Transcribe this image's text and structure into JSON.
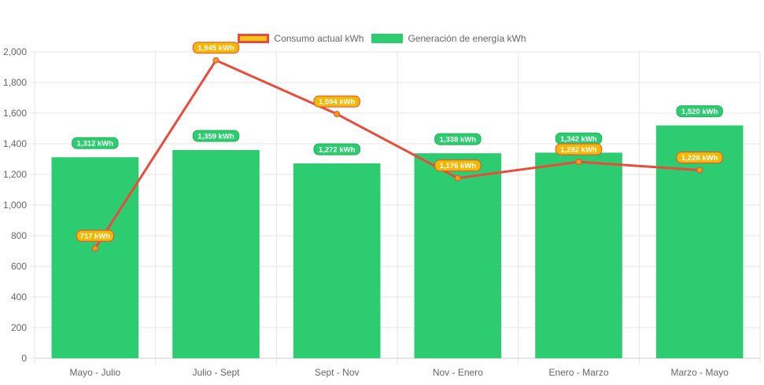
{
  "chart_data": {
    "type": "bar",
    "categories": [
      "Mayo - Julio",
      "Julio - Sept",
      "Sept - Nov",
      "Nov - Enero",
      "Enero - Marzo",
      "Marzo - Mayo"
    ],
    "series": [
      {
        "name": "Consumo actual kWh",
        "type": "line",
        "values": [
          717,
          1945,
          1594,
          1176,
          1282,
          1228
        ],
        "labels": [
          "717 kWh",
          "1,945 kWh",
          "1,594 kWh",
          "1,176 kWh",
          "1,282 kWh",
          "1,228 kWh"
        ],
        "color": "#e74c3c",
        "point_color": "#f39c12",
        "label_bg": "#f5b800"
      },
      {
        "name": "Generación de energía kWh",
        "type": "bar",
        "values": [
          1312,
          1359,
          1272,
          1338,
          1342,
          1520
        ],
        "labels": [
          "1,312 kWh",
          "1,359 kWh",
          "1,272 kWh",
          "1,338 kWh",
          "1,342 kWh",
          "1,520 kWh"
        ],
        "color": "#2ecc71"
      }
    ],
    "ylim": [
      0,
      2000
    ],
    "yticks": [
      0,
      200,
      400,
      600,
      800,
      1000,
      1200,
      1400,
      1600,
      1800,
      2000
    ],
    "ytick_labels": [
      "0",
      "200",
      "400",
      "600",
      "800",
      "1,000",
      "1,200",
      "1,400",
      "1,600",
      "1,800",
      "2,000"
    ],
    "grid": true,
    "legend_position": "top"
  },
  "legend": {
    "line_label": "Consumo actual kWh",
    "bar_label": "Generación de energía kWh"
  }
}
